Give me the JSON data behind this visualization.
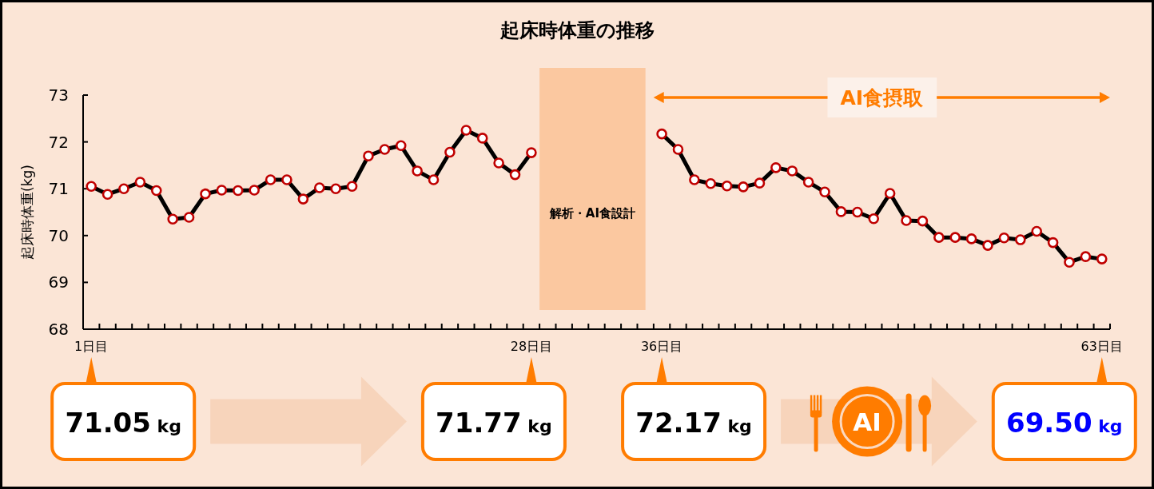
{
  "chart_data": {
    "type": "line",
    "title": "起床時体重の推移",
    "ylabel": "起床時体重(kg)",
    "x": [
      1,
      2,
      3,
      4,
      5,
      6,
      7,
      8,
      9,
      10,
      11,
      12,
      13,
      14,
      15,
      16,
      17,
      18,
      19,
      20,
      21,
      22,
      23,
      24,
      25,
      26,
      27,
      28,
      29,
      30,
      31,
      32,
      33,
      34,
      35,
      36,
      37,
      38,
      39,
      40,
      41,
      42,
      43,
      44,
      45,
      46,
      47,
      48,
      49,
      50,
      51,
      52,
      53,
      54,
      55,
      56,
      57,
      58,
      59,
      60,
      61,
      62,
      63
    ],
    "xlim": [
      0.5,
      63.5
    ],
    "xticks": [
      {
        "value": 1,
        "label": "1日目"
      },
      {
        "value": 1.5,
        "label": null
      },
      {
        "value": 2.5,
        "label": null
      },
      {
        "value": 3.5,
        "label": null
      },
      {
        "value": 4.5,
        "label": null
      },
      {
        "value": 5.5,
        "label": null
      },
      {
        "value": 6.5,
        "label": null
      },
      {
        "value": 7.5,
        "label": null
      },
      {
        "value": 8.5,
        "label": null
      },
      {
        "value": 9.5,
        "label": null
      },
      {
        "value": 10.5,
        "label": null
      },
      {
        "value": 11.5,
        "label": null
      },
      {
        "value": 12.5,
        "label": null
      },
      {
        "value": 13.5,
        "label": null
      },
      {
        "value": 14.5,
        "label": null
      },
      {
        "value": 15.5,
        "label": null
      },
      {
        "value": 16.5,
        "label": null
      },
      {
        "value": 17.5,
        "label": null
      },
      {
        "value": 18.5,
        "label": null
      },
      {
        "value": 19.5,
        "label": null
      },
      {
        "value": 20.5,
        "label": null
      },
      {
        "value": 21.5,
        "label": null
      },
      {
        "value": 22.5,
        "label": null
      },
      {
        "value": 23.5,
        "label": null
      },
      {
        "value": 24.5,
        "label": null
      },
      {
        "value": 25.5,
        "label": null
      },
      {
        "value": 26.5,
        "label": null
      },
      {
        "value": 27.5,
        "label": null
      },
      {
        "value": 28,
        "label": "28日目"
      },
      {
        "value": 28.5,
        "label": null
      },
      {
        "value": 29.5,
        "label": null
      },
      {
        "value": 30.5,
        "label": null
      },
      {
        "value": 31.5,
        "label": null
      },
      {
        "value": 32.5,
        "label": null
      },
      {
        "value": 33.5,
        "label": null
      },
      {
        "value": 34.5,
        "label": null
      },
      {
        "value": 35.5,
        "label": null
      },
      {
        "value": 36,
        "label": "36日目"
      },
      {
        "value": 36.5,
        "label": null
      },
      {
        "value": 37.5,
        "label": null
      },
      {
        "value": 38.5,
        "label": null
      },
      {
        "value": 39.5,
        "label": null
      },
      {
        "value": 40.5,
        "label": null
      },
      {
        "value": 41.5,
        "label": null
      },
      {
        "value": 42.5,
        "label": null
      },
      {
        "value": 43.5,
        "label": null
      },
      {
        "value": 44.5,
        "label": null
      },
      {
        "value": 45.5,
        "label": null
      },
      {
        "value": 46.5,
        "label": null
      },
      {
        "value": 47.5,
        "label": null
      },
      {
        "value": 48.5,
        "label": null
      },
      {
        "value": 49.5,
        "label": null
      },
      {
        "value": 50.5,
        "label": null
      },
      {
        "value": 51.5,
        "label": null
      },
      {
        "value": 52.5,
        "label": null
      },
      {
        "value": 53.5,
        "label": null
      },
      {
        "value": 54.5,
        "label": null
      },
      {
        "value": 55.5,
        "label": null
      },
      {
        "value": 56.5,
        "label": null
      },
      {
        "value": 57.5,
        "label": null
      },
      {
        "value": 58.5,
        "label": null
      },
      {
        "value": 59.5,
        "label": null
      },
      {
        "value": 60.5,
        "label": null
      },
      {
        "value": 61.5,
        "label": null
      },
      {
        "value": 62.5,
        "label": null
      },
      {
        "value": 63,
        "label": "63日目"
      },
      {
        "value": 63.5,
        "label": null
      }
    ],
    "ylim": [
      68,
      73
    ],
    "yticks": [
      68,
      69,
      70,
      71,
      72,
      73
    ],
    "series": [
      {
        "color": "#000000",
        "values": [
          71.05,
          70.88,
          71.0,
          71.14,
          70.96,
          70.35,
          70.39,
          70.89,
          70.97,
          70.96,
          70.97,
          71.19,
          71.19,
          70.78,
          71.02,
          71.0,
          71.05,
          71.7,
          71.84,
          71.92,
          71.38,
          71.19,
          71.78,
          72.25,
          72.08,
          71.55,
          71.3,
          71.77,
          null,
          null,
          null,
          null,
          null,
          null,
          null,
          72.17,
          71.84,
          71.19,
          71.11,
          71.06,
          71.04,
          71.12,
          71.45,
          71.38,
          71.14,
          70.93,
          70.51,
          70.5,
          70.36,
          70.9,
          70.32,
          70.31,
          69.96,
          69.96,
          69.93,
          69.79,
          69.95,
          69.91,
          70.09,
          69.85,
          69.43,
          69.55,
          69.5
        ]
      }
    ],
    "marker": "circle",
    "line_style": "solid",
    "bands": [
      {
        "axis": "x",
        "from": 28.5,
        "to": 35,
        "label": "解析・AI食設計",
        "color": "#fbc8a0"
      }
    ],
    "annotations": [
      "AI食摂取",
      "AI",
      "71.05 kg",
      "71.77 kg",
      "72.17 kg",
      "69.50 kg"
    ]
  }
}
